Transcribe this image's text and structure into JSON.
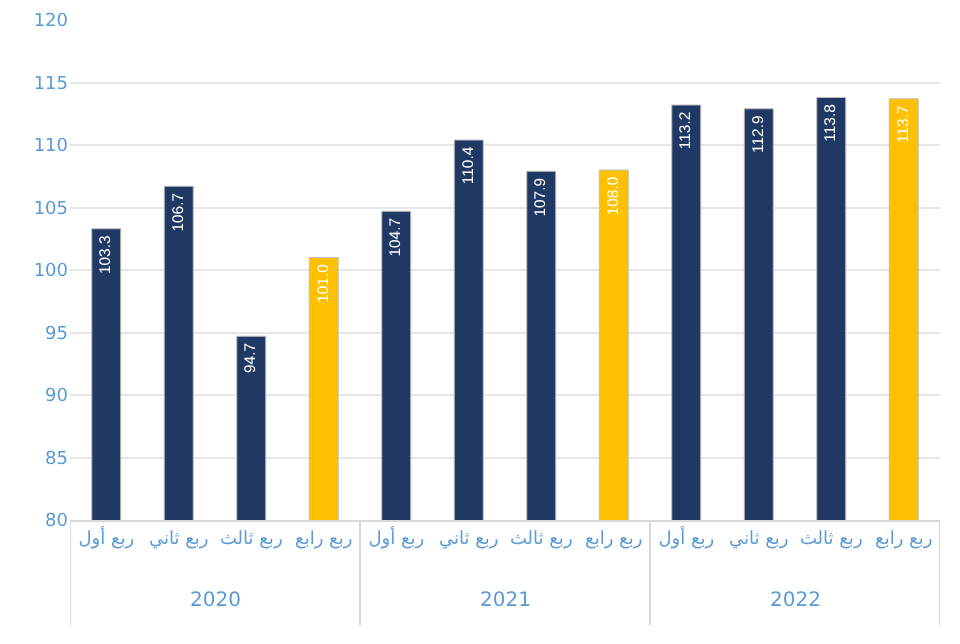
{
  "chart_data": {
    "type": "bar",
    "categories": [
      "ربع أول",
      "ربع ثاني",
      "ربع ثالث",
      "ربع رابع",
      "ربع أول",
      "ربع ثاني",
      "ربع ثالث",
      "ربع رابع",
      "ربع أول",
      "ربع ثاني",
      "ربع ثالث",
      "ربع رابع"
    ],
    "values": [
      103.3,
      106.7,
      94.7,
      101.0,
      104.7,
      110.4,
      107.9,
      108.0,
      113.2,
      112.9,
      113.8,
      113.7
    ],
    "value_labels": [
      "103.3",
      "106.7",
      "94.7",
      "101.0",
      "104.7",
      "110.4",
      "107.9",
      "108.0",
      "113.2",
      "112.9",
      "113.8",
      "113.7"
    ],
    "colors": [
      "#1f3864",
      "#1f3864",
      "#1f3864",
      "#ffc000",
      "#1f3864",
      "#1f3864",
      "#1f3864",
      "#ffc000",
      "#1f3864",
      "#1f3864",
      "#1f3864",
      "#ffc000"
    ],
    "ylim": [
      80,
      120
    ],
    "yticks": [
      80,
      85,
      90,
      95,
      100,
      105,
      110,
      115,
      120
    ],
    "grid": "y",
    "annotations": [
      "2020",
      "2021",
      "2022"
    ]
  }
}
